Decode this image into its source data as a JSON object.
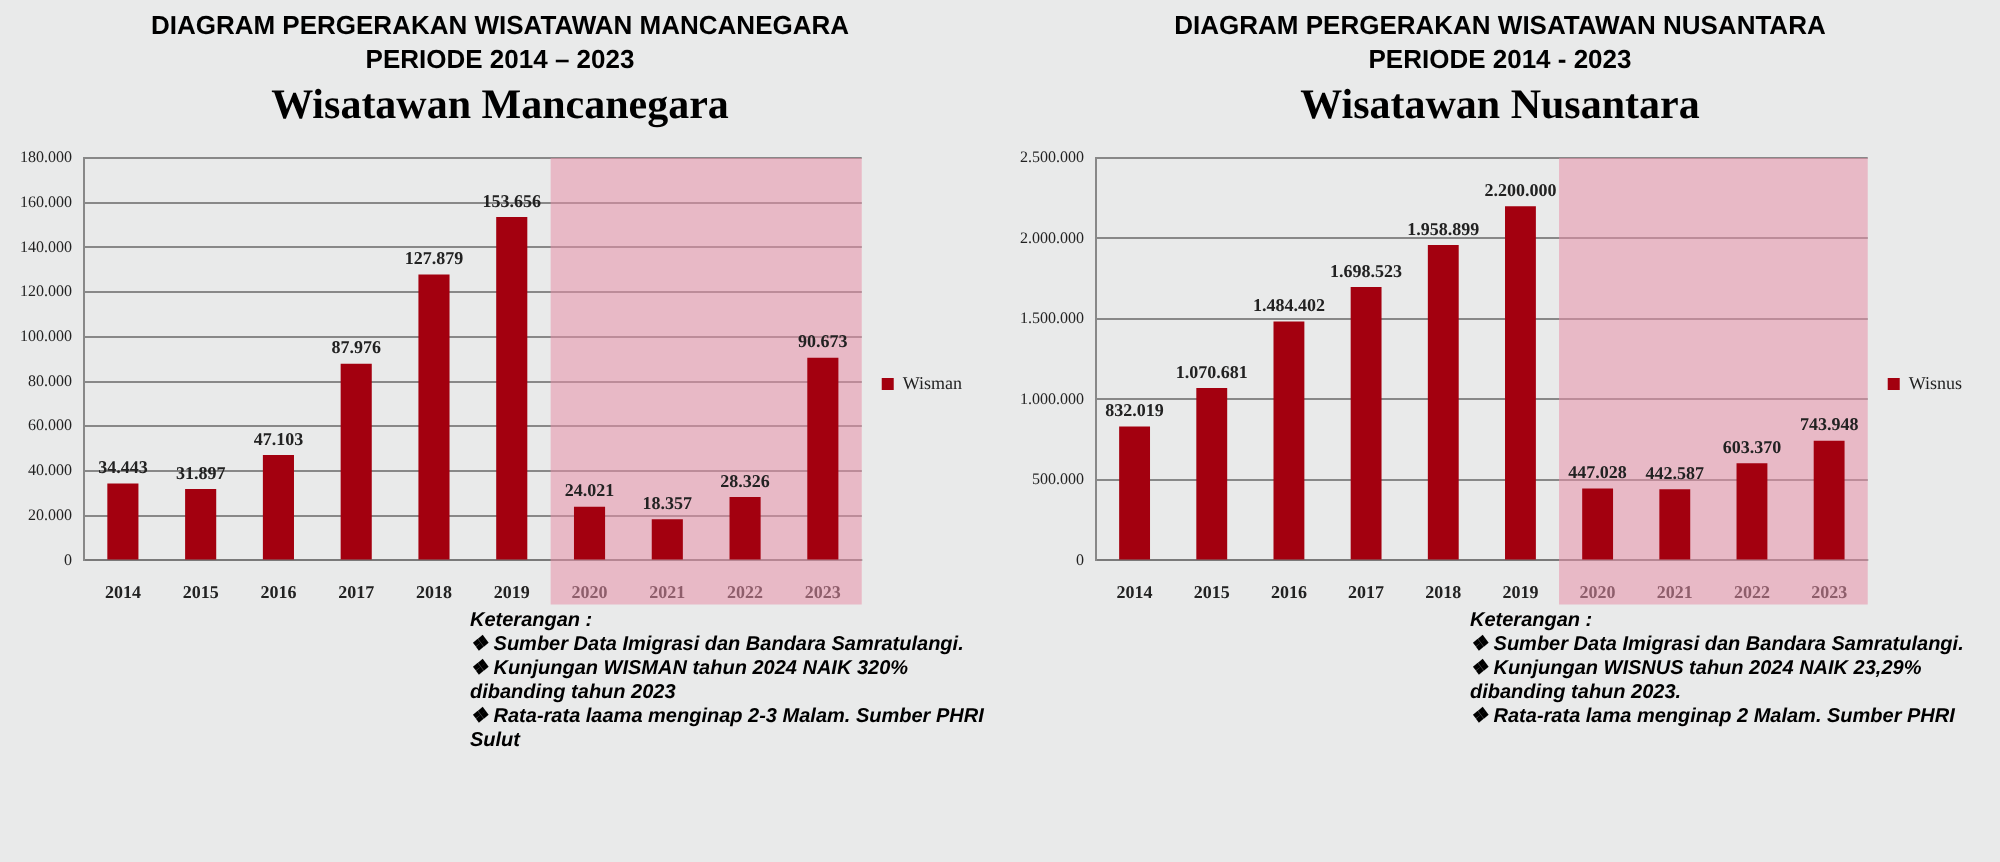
{
  "chart_data": [
    {
      "type": "bar",
      "title": "DIAGRAM PERGERAKAN WISATAWAN MANCANEGARA",
      "subtitle": "PERIODE 2014 – 2023",
      "annotations": [
        "Wisatawan Mancanegara",
        "Keterangan :",
        "❖ Sumber Data Imigrasi dan Bandara Samratulangi.",
        "❖ Kunjungan WISMAN tahun 2024 NAIK 320% dibanding tahun 2023",
        "❖ Rata-rata laama menginap 2-3 Malam. Sumber PHRI Sulut"
      ],
      "categories": [
        "2014",
        "2015",
        "2016",
        "2017",
        "2018",
        "2019",
        "2020",
        "2021",
        "2022",
        "2023"
      ],
      "series": [
        {
          "name": "Wisman",
          "color": "#a3000f",
          "values": [
            34443,
            31897,
            47103,
            87976,
            127879,
            153656,
            24021,
            18357,
            28326,
            90673
          ],
          "value_labels": [
            "34.443",
            "31.897",
            "47.103",
            "87.976",
            "127.879",
            "153.656",
            "24.021",
            "18.357",
            "28.326",
            "90.673"
          ]
        }
      ],
      "ylim": [
        0,
        180000
      ],
      "yticks": [
        {
          "value": 0,
          "label": "0"
        },
        {
          "value": 20000,
          "label": "20.000"
        },
        {
          "value": 40000,
          "label": "40.000"
        },
        {
          "value": 60000,
          "label": "60.000"
        },
        {
          "value": 80000,
          "label": "80.000"
        },
        {
          "value": 100000,
          "label": "100.000"
        },
        {
          "value": 120000,
          "label": "120.000"
        },
        {
          "value": 140000,
          "label": "140.000"
        },
        {
          "value": 160000,
          "label": "160.000"
        },
        {
          "value": 180000,
          "label": "180.000"
        }
      ],
      "bands": [
        {
          "axis": "x",
          "from": "2020",
          "to": "2023",
          "color": "#e890a8"
        }
      ],
      "grid": "y",
      "legend": "right"
    },
    {
      "type": "bar",
      "title": "DIAGRAM PERGERAKAN WISATAWAN NUSANTARA",
      "subtitle": "PERIODE 2014 - 2023",
      "annotations": [
        "Wisatawan Nusantara",
        "Keterangan :",
        "❖ Sumber Data Imigrasi dan Bandara Samratulangi.",
        "❖ Kunjungan WISNUS tahun 2024 NAIK 23,29% dibanding tahun 2023.",
        "❖ Rata-rata lama menginap 2 Malam. Sumber PHRI"
      ],
      "categories": [
        "2014",
        "2015",
        "2016",
        "2017",
        "2018",
        "2019",
        "2020",
        "2021",
        "2022",
        "2023"
      ],
      "series": [
        {
          "name": "Wisnus",
          "color": "#a3000f",
          "values": [
            832019,
            1070681,
            1484402,
            1698523,
            1958899,
            2200000,
            447028,
            442587,
            603370,
            743948
          ],
          "value_labels": [
            "832.019",
            "1.070.681",
            "1.484.402",
            "1.698.523",
            "1.958.899",
            "2.200.000",
            "447.028",
            "442.587",
            "603.370",
            "743.948"
          ]
        }
      ],
      "ylim": [
        0,
        2500000
      ],
      "yticks": [
        {
          "value": 0,
          "label": "0"
        },
        {
          "value": 500000,
          "label": "500.000"
        },
        {
          "value": 1000000,
          "label": "1.000.000"
        },
        {
          "value": 1500000,
          "label": "1.500.000"
        },
        {
          "value": 2000000,
          "label": "2.000.000"
        },
        {
          "value": 2500000,
          "label": "2.500.000"
        }
      ],
      "bands": [
        {
          "axis": "x",
          "from": "2020",
          "to": "2023",
          "color": "#e890a8"
        }
      ],
      "grid": "y",
      "legend": "right"
    }
  ]
}
